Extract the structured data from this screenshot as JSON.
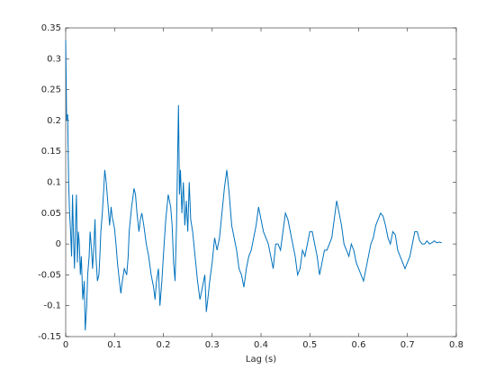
{
  "chart_data": {
    "type": "line",
    "x_label": "Lag (s)",
    "color": "#0072bd",
    "x": [
      0,
      0.002,
      0.004,
      0.006,
      0.008,
      0.01,
      0.012,
      0.014,
      0.016,
      0.018,
      0.02,
      0.022,
      0.024,
      0.026,
      0.028,
      0.03,
      0.032,
      0.035,
      0.038,
      0.04,
      0.043,
      0.045,
      0.048,
      0.05,
      0.053,
      0.055,
      0.058,
      0.06,
      0.062,
      0.065,
      0.068,
      0.07,
      0.072,
      0.075,
      0.078,
      0.08,
      0.083,
      0.085,
      0.088,
      0.09,
      0.093,
      0.095,
      0.1,
      0.103,
      0.106,
      0.11,
      0.113,
      0.116,
      0.12,
      0.125,
      0.128,
      0.13,
      0.135,
      0.14,
      0.143,
      0.146,
      0.15,
      0.153,
      0.156,
      0.16,
      0.165,
      0.17,
      0.175,
      0.18,
      0.183,
      0.186,
      0.19,
      0.193,
      0.197,
      0.2,
      0.205,
      0.21,
      0.215,
      0.218,
      0.221,
      0.224,
      0.227,
      0.229,
      0.231,
      0.233,
      0.235,
      0.238,
      0.241,
      0.244,
      0.247,
      0.25,
      0.253,
      0.256,
      0.26,
      0.265,
      0.27,
      0.275,
      0.28,
      0.285,
      0.288,
      0.291,
      0.295,
      0.3,
      0.305,
      0.31,
      0.315,
      0.32,
      0.325,
      0.33,
      0.335,
      0.34,
      0.345,
      0.35,
      0.355,
      0.36,
      0.365,
      0.37,
      0.375,
      0.38,
      0.385,
      0.39,
      0.395,
      0.4,
      0.405,
      0.41,
      0.415,
      0.42,
      0.425,
      0.43,
      0.435,
      0.44,
      0.445,
      0.45,
      0.455,
      0.46,
      0.465,
      0.47,
      0.475,
      0.48,
      0.485,
      0.49,
      0.495,
      0.5,
      0.505,
      0.51,
      0.515,
      0.52,
      0.525,
      0.53,
      0.535,
      0.54,
      0.545,
      0.55,
      0.555,
      0.56,
      0.565,
      0.57,
      0.575,
      0.58,
      0.585,
      0.59,
      0.595,
      0.6,
      0.605,
      0.61,
      0.615,
      0.62,
      0.625,
      0.63,
      0.635,
      0.64,
      0.645,
      0.65,
      0.655,
      0.66,
      0.665,
      0.67,
      0.675,
      0.68,
      0.685,
      0.69,
      0.695,
      0.7,
      0.705,
      0.71,
      0.715,
      0.72,
      0.725,
      0.73,
      0.735,
      0.74,
      0.745,
      0.75,
      0.755,
      0.76,
      0.765,
      0.77
    ],
    "values": [
      0.33,
      0.2,
      0.21,
      0.1,
      0.05,
      0.02,
      -0.02,
      0.08,
      0.01,
      -0.04,
      0.03,
      0.08,
      -0.03,
      0.02,
      0,
      -0.05,
      -0.02,
      -0.09,
      -0.06,
      -0.14,
      -0.1,
      -0.05,
      -0.02,
      0.02,
      -0.01,
      -0.04,
      0,
      0.04,
      -0.02,
      -0.06,
      -0.05,
      -0.02,
      0.02,
      0.05,
      0.09,
      0.12,
      0.1,
      0.08,
      0.05,
      0.03,
      0.06,
      0.045,
      0.025,
      0,
      -0.03,
      -0.06,
      -0.08,
      -0.06,
      -0.04,
      -0.05,
      -0.02,
      0.02,
      0.06,
      0.09,
      0.08,
      0.05,
      0.02,
      0.04,
      0.05,
      0.03,
      0,
      -0.02,
      -0.05,
      -0.07,
      -0.09,
      -0.06,
      -0.04,
      -0.1,
      -0.06,
      -0.02,
      0.04,
      0.08,
      0.06,
      0.03,
      -0.03,
      -0.06,
      0.03,
      0.13,
      0.225,
      0.08,
      0.12,
      0.05,
      0.1,
      0.03,
      0.07,
      0.02,
      0.1,
      0.04,
      0.02,
      -0.02,
      -0.06,
      -0.09,
      -0.07,
      -0.05,
      -0.11,
      -0.09,
      -0.06,
      -0.03,
      0.01,
      -0.01,
      0.01,
      0.05,
      0.09,
      0.12,
      0.08,
      0.03,
      0.01,
      -0.01,
      -0.04,
      -0.05,
      -0.07,
      -0.04,
      -0.02,
      -0.01,
      0.01,
      0.03,
      0.06,
      0.04,
      0.02,
      0.01,
      0,
      -0.02,
      -0.04,
      0,
      0,
      -0.01,
      0.02,
      0.05,
      0.04,
      0.02,
      0,
      -0.02,
      -0.05,
      -0.04,
      -0.01,
      -0.02,
      0,
      0.02,
      0.02,
      0,
      -0.02,
      -0.05,
      -0.03,
      -0.01,
      -0.01,
      0,
      0.01,
      0.04,
      0.07,
      0.05,
      0.03,
      0,
      -0.01,
      -0.02,
      0,
      -0.01,
      -0.03,
      -0.04,
      -0.05,
      -0.06,
      -0.04,
      -0.02,
      0,
      0.01,
      0.03,
      0.04,
      0.05,
      0.045,
      0.03,
      0.01,
      0,
      0.02,
      0.015,
      -0.01,
      -0.02,
      -0.03,
      -0.04,
      -0.03,
      -0.02,
      0,
      0.02,
      0.02,
      0.005,
      0,
      0,
      0.005,
      0,
      0.002,
      0.005,
      0.002,
      0.003,
      0.002
    ],
    "xlim": [
      0,
      0.8
    ],
    "xticks": [
      0,
      0.1,
      0.2,
      0.3,
      0.4,
      0.5,
      0.6,
      0.7,
      0.8
    ],
    "ylim": [
      -0.15,
      0.35
    ],
    "yticks": [
      -0.15,
      -0.1,
      -0.05,
      0,
      0.05,
      0.1,
      0.15,
      0.2,
      0.25,
      0.3,
      0.35
    ]
  }
}
